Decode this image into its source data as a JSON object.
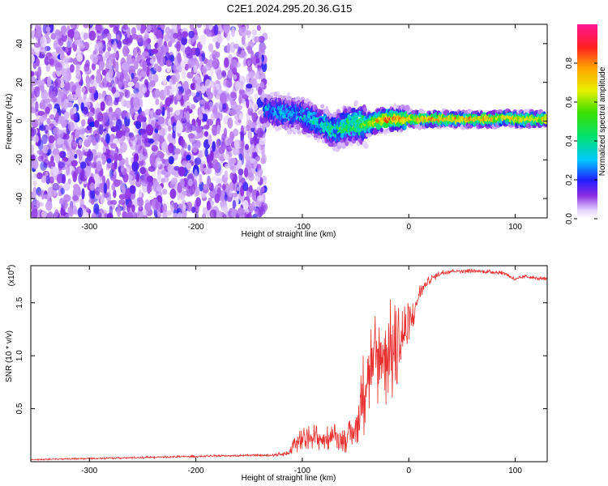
{
  "title": "C2E1.2024.295.20.36.G15",
  "chart_data": [
    {
      "type": "heatmap",
      "xlabel": "Height of straight line (km)",
      "ylabel": "Frequency (Hz)",
      "xlim": [
        -355,
        130
      ],
      "ylim": [
        -50,
        50
      ],
      "xticks": [
        -300,
        -200,
        -100,
        0,
        100
      ],
      "yticks": [
        -40,
        -20,
        0,
        20,
        40
      ],
      "colorbar": {
        "label": "Normalized spectral amplitude",
        "range": [
          0,
          1
        ],
        "ticks": [
          "0.0",
          "0.2",
          "0.4",
          "0.6",
          "0.8"
        ],
        "tick_values": [
          0.0,
          0.2,
          0.4,
          0.6,
          0.8
        ],
        "colormap": "rainbow"
      },
      "regions": [
        {
          "x": [
            -355,
            -135
          ],
          "freq": [
            -50,
            50
          ],
          "amplitude": [
            0.0,
            0.2
          ],
          "description_level": "noise"
        },
        {
          "x": [
            -135,
            -40
          ],
          "freq_center": [
            5,
            -10
          ],
          "amplitude": [
            0.2,
            0.6
          ]
        },
        {
          "x": [
            -40,
            130
          ],
          "freq_center": [
            0,
            2
          ],
          "amplitude": [
            0.6,
            0.95
          ]
        }
      ],
      "ridge": {
        "x": [
          -135,
          -120,
          -100,
          -80,
          -70,
          -60,
          -50,
          -40,
          -30,
          -20,
          0,
          20,
          40,
          60,
          80,
          90,
          100,
          130
        ],
        "freq": [
          6,
          5,
          3,
          -2,
          -5,
          -3,
          -1,
          -2,
          0,
          1,
          1,
          1,
          1,
          1,
          1,
          2,
          1,
          1
        ],
        "amplitude": [
          0.25,
          0.3,
          0.3,
          0.35,
          0.4,
          0.45,
          0.5,
          0.6,
          0.75,
          0.85,
          0.75,
          0.8,
          0.8,
          0.8,
          0.8,
          0.7,
          0.75,
          0.75
        ]
      }
    },
    {
      "type": "line",
      "xlabel": "Height of straight line (km)",
      "ylabel": "SNR (10 * v/v)",
      "yscale_label": "(x10",
      "yscale_exp": "4",
      "yscale_close": ")",
      "xlim": [
        -355,
        130
      ],
      "ylim": [
        0,
        1.85
      ],
      "xticks": [
        -300,
        -200,
        -100,
        0,
        100
      ],
      "yticks": [
        0.5,
        1.0,
        1.5
      ],
      "ytick_labels": [
        "0.5",
        "1.0",
        "1.5"
      ],
      "color": "#e83030",
      "series": [
        {
          "x": [
            -355,
            -300,
            -250,
            -200,
            -150,
            -130,
            -112,
            -110,
            -100,
            -90,
            -80,
            -70,
            -60,
            -50,
            -45,
            -40,
            -35,
            -30,
            -25,
            -20,
            -15,
            -10,
            -5,
            0,
            5,
            10,
            20,
            30,
            40,
            60,
            80,
            90,
            100,
            110,
            120,
            130
          ],
          "y": [
            0.02,
            0.03,
            0.04,
            0.05,
            0.06,
            0.06,
            0.08,
            0.15,
            0.2,
            0.25,
            0.2,
            0.25,
            0.2,
            0.3,
            0.5,
            0.8,
            0.9,
            0.95,
            1.0,
            1.05,
            1.0,
            1.1,
            1.2,
            1.25,
            1.4,
            1.6,
            1.72,
            1.78,
            1.8,
            1.8,
            1.79,
            1.78,
            1.72,
            1.75,
            1.73,
            1.72
          ],
          "noise": [
            0.005,
            0.01,
            0.01,
            0.01,
            0.01,
            0.01,
            0.03,
            0.1,
            0.12,
            0.12,
            0.12,
            0.12,
            0.12,
            0.2,
            0.35,
            0.5,
            0.5,
            0.55,
            0.55,
            0.55,
            0.5,
            0.45,
            0.35,
            0.25,
            0.15,
            0.08,
            0.04,
            0.03,
            0.02,
            0.02,
            0.02,
            0.02,
            0.02,
            0.02,
            0.02,
            0.02
          ]
        }
      ]
    }
  ]
}
